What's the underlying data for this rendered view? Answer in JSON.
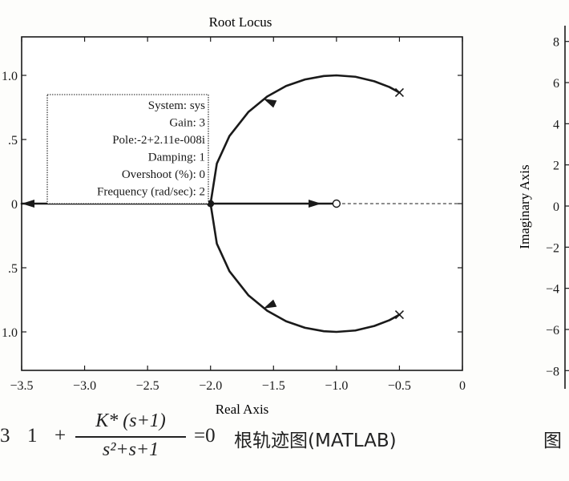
{
  "chart_data": [
    {
      "type": "line",
      "title": "Root Locus",
      "xlabel": "Real Axis",
      "ylabel": "",
      "xlim": [
        -3.5,
        0
      ],
      "ylim": [
        -1.3,
        1.3
      ],
      "xticks": [
        "-3.5",
        "-3.0",
        "-2.5",
        "-2.0",
        "-1.5",
        "-1.0",
        "-0.5",
        "0"
      ],
      "yticks": [
        "1.0",
        ".5",
        "0",
        ".5",
        "1.0"
      ],
      "ytick_values": [
        1.0,
        0.5,
        0,
        -0.5,
        -1.0
      ],
      "series": [
        {
          "branch": "upper-arc",
          "x": [
            -2.0,
            -1.95,
            -1.85,
            -1.7,
            -1.55,
            -1.4,
            -1.25,
            -1.1,
            -1.0,
            -0.85,
            -0.7,
            -0.58,
            -0.5
          ],
          "y": [
            0.0,
            0.312,
            0.527,
            0.714,
            0.835,
            0.917,
            0.968,
            0.995,
            1.0,
            0.989,
            0.954,
            0.909,
            0.866
          ],
          "arrow_toward": "real-axis"
        },
        {
          "branch": "lower-arc",
          "x": [
            -2.0,
            -1.95,
            -1.85,
            -1.7,
            -1.55,
            -1.4,
            -1.25,
            -1.1,
            -1.0,
            -0.85,
            -0.7,
            -0.58,
            -0.5
          ],
          "y": [
            0.0,
            -0.312,
            -0.527,
            -0.714,
            -0.835,
            -0.917,
            -0.968,
            -0.995,
            -1.0,
            -0.989,
            -0.954,
            -0.909,
            -0.866
          ],
          "arrow_toward": "real-axis"
        },
        {
          "branch": "real-axis-to-zero",
          "x": [
            -2.0,
            -1.0
          ],
          "y": [
            0,
            0
          ]
        },
        {
          "branch": "real-axis-to-infinity",
          "x": [
            -2.0,
            -3.5
          ],
          "y": [
            0,
            0
          ]
        }
      ],
      "poles": [
        {
          "x": -0.5,
          "y": 0.866
        },
        {
          "x": -0.5,
          "y": -0.866
        }
      ],
      "zeros": [
        {
          "x": -1.0,
          "y": 0
        }
      ],
      "selected_point": {
        "x": -2.0,
        "y": 0
      },
      "datatip": {
        "lines": [
          "System: sys",
          "Gain: 3",
          "Pole:-2+2.11e-008i",
          "Damping: 1",
          "Overshoot (%): 0",
          "Frequency (rad/sec): 2"
        ]
      },
      "colors": {
        "curve": "#1a1a1a",
        "axis": "#1a1a1a",
        "background": "#ffffff"
      }
    },
    {
      "type": "line",
      "title": "",
      "ylabel": "Imaginary Axis",
      "yticks": [
        "8",
        "6",
        "4",
        "2",
        "0",
        "−2",
        "−4",
        "−6",
        "−8"
      ],
      "ytick_values": [
        8,
        6,
        4,
        2,
        0,
        -2,
        -4,
        -6,
        -8
      ],
      "ylim": [
        -8.3,
        8.3
      ]
    }
  ],
  "caption": {
    "number": "3",
    "one": "1",
    "plus": "+",
    "numerator": "K* (s+1)",
    "denominator": "s²+s+1",
    "equals": "=0",
    "title": "根轨迹图(MATLAB)",
    "next_figure": "图"
  }
}
